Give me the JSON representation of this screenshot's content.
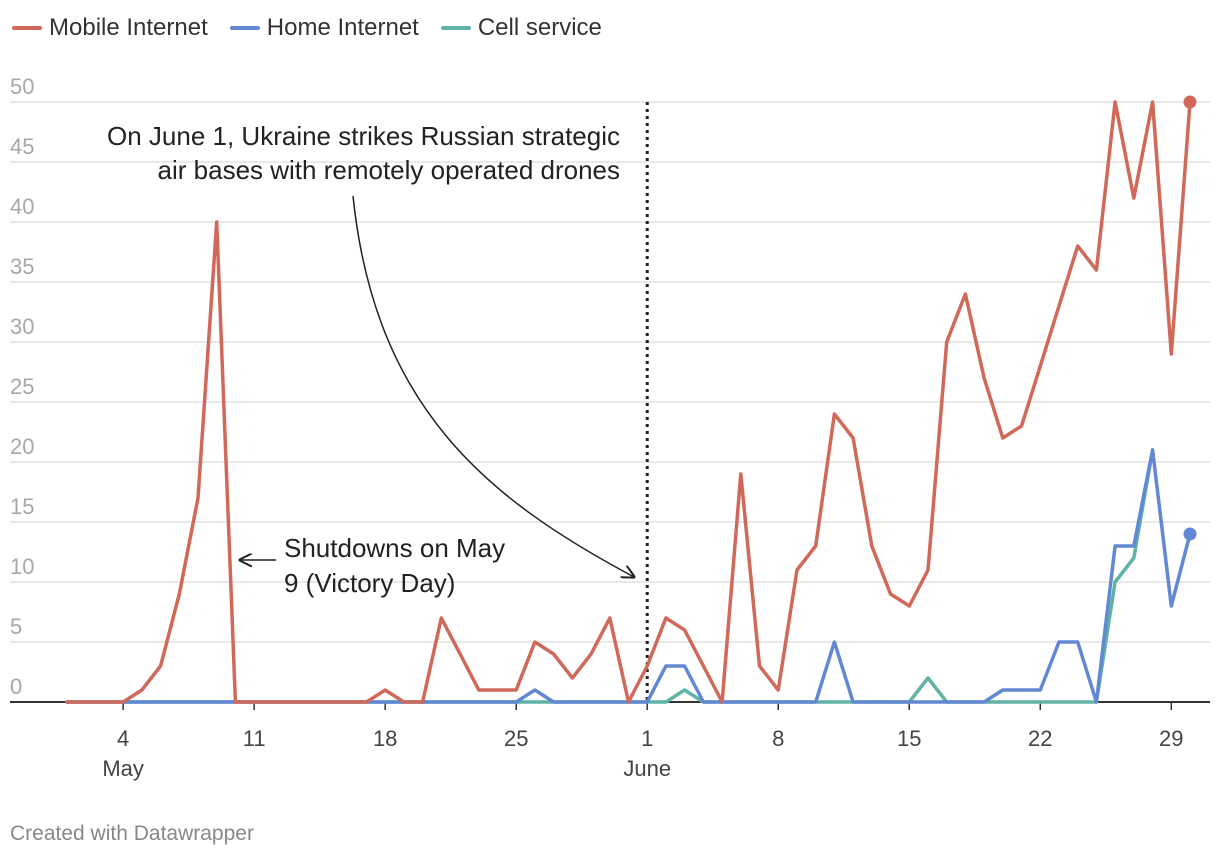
{
  "chart_data": {
    "type": "line",
    "title": "",
    "xlabel": "",
    "ylabel": "",
    "ylim": [
      0,
      50
    ],
    "y_ticks": [
      "0",
      "5",
      "10",
      "15",
      "20",
      "25",
      "30",
      "35",
      "40",
      "45",
      "50"
    ],
    "x_ticks": [
      {
        "day": 4,
        "label": "4",
        "sublabel": "May"
      },
      {
        "day": 11,
        "label": "11",
        "sublabel": ""
      },
      {
        "day": 18,
        "label": "18",
        "sublabel": ""
      },
      {
        "day": 25,
        "label": "25",
        "sublabel": ""
      },
      {
        "day": 32,
        "label": "1",
        "sublabel": "June"
      },
      {
        "day": 39,
        "label": "8",
        "sublabel": ""
      },
      {
        "day": 46,
        "label": "15",
        "sublabel": ""
      },
      {
        "day": 53,
        "label": "22",
        "sublabel": ""
      },
      {
        "day": 60,
        "label": "29",
        "sublabel": ""
      }
    ],
    "x_start_day": 1,
    "x_end_day": 61,
    "series": [
      {
        "name": "Mobile Internet",
        "color": "#d0695a",
        "values": [
          0,
          0,
          0,
          0,
          1,
          3,
          9,
          17,
          40,
          0,
          0,
          0,
          0,
          0,
          0,
          0,
          0,
          1,
          0,
          0,
          7,
          4,
          1,
          1,
          1,
          5,
          4,
          2,
          4,
          7,
          0,
          3,
          7,
          6,
          3,
          0,
          19,
          3,
          1,
          11,
          13,
          24,
          22,
          13,
          9,
          8,
          11,
          30,
          34,
          27,
          22,
          23,
          28,
          33,
          38,
          36,
          50,
          42,
          50,
          29,
          50
        ]
      },
      {
        "name": "Home Internet",
        "color": "#6288d3",
        "values": [
          0,
          0,
          0,
          0,
          0,
          0,
          0,
          0,
          0,
          0,
          0,
          0,
          0,
          0,
          0,
          0,
          0,
          0,
          0,
          0,
          0,
          0,
          0,
          0,
          0,
          1,
          0,
          0,
          0,
          0,
          0,
          0,
          3,
          3,
          0,
          0,
          0,
          0,
          0,
          0,
          0,
          5,
          0,
          0,
          0,
          0,
          0,
          0,
          0,
          0,
          1,
          1,
          1,
          5,
          5,
          0,
          13,
          13,
          21,
          8,
          14
        ]
      },
      {
        "name": "Cell service",
        "color": "#5fb3a6",
        "values": [
          0,
          0,
          0,
          0,
          0,
          0,
          0,
          0,
          0,
          0,
          0,
          0,
          0,
          0,
          0,
          0,
          0,
          0,
          0,
          0,
          0,
          0,
          0,
          0,
          0,
          0,
          0,
          0,
          0,
          0,
          0,
          0,
          0,
          1,
          0,
          0,
          0,
          0,
          0,
          0,
          0,
          0,
          0,
          0,
          0,
          0,
          2,
          0,
          0,
          0,
          0,
          0,
          0,
          0,
          0,
          0,
          10,
          12,
          21,
          null,
          null
        ]
      }
    ],
    "annotations": [
      {
        "text_lines": [
          "On June 1, Ukraine strikes Russian strategic",
          "air bases with remotely operated drones"
        ],
        "marker_day": 32
      },
      {
        "text_lines": [
          "Shutdowns on May",
          "9 (Victory Day)"
        ],
        "target_day": 10
      }
    ]
  },
  "footer": "Created with Datawrapper"
}
